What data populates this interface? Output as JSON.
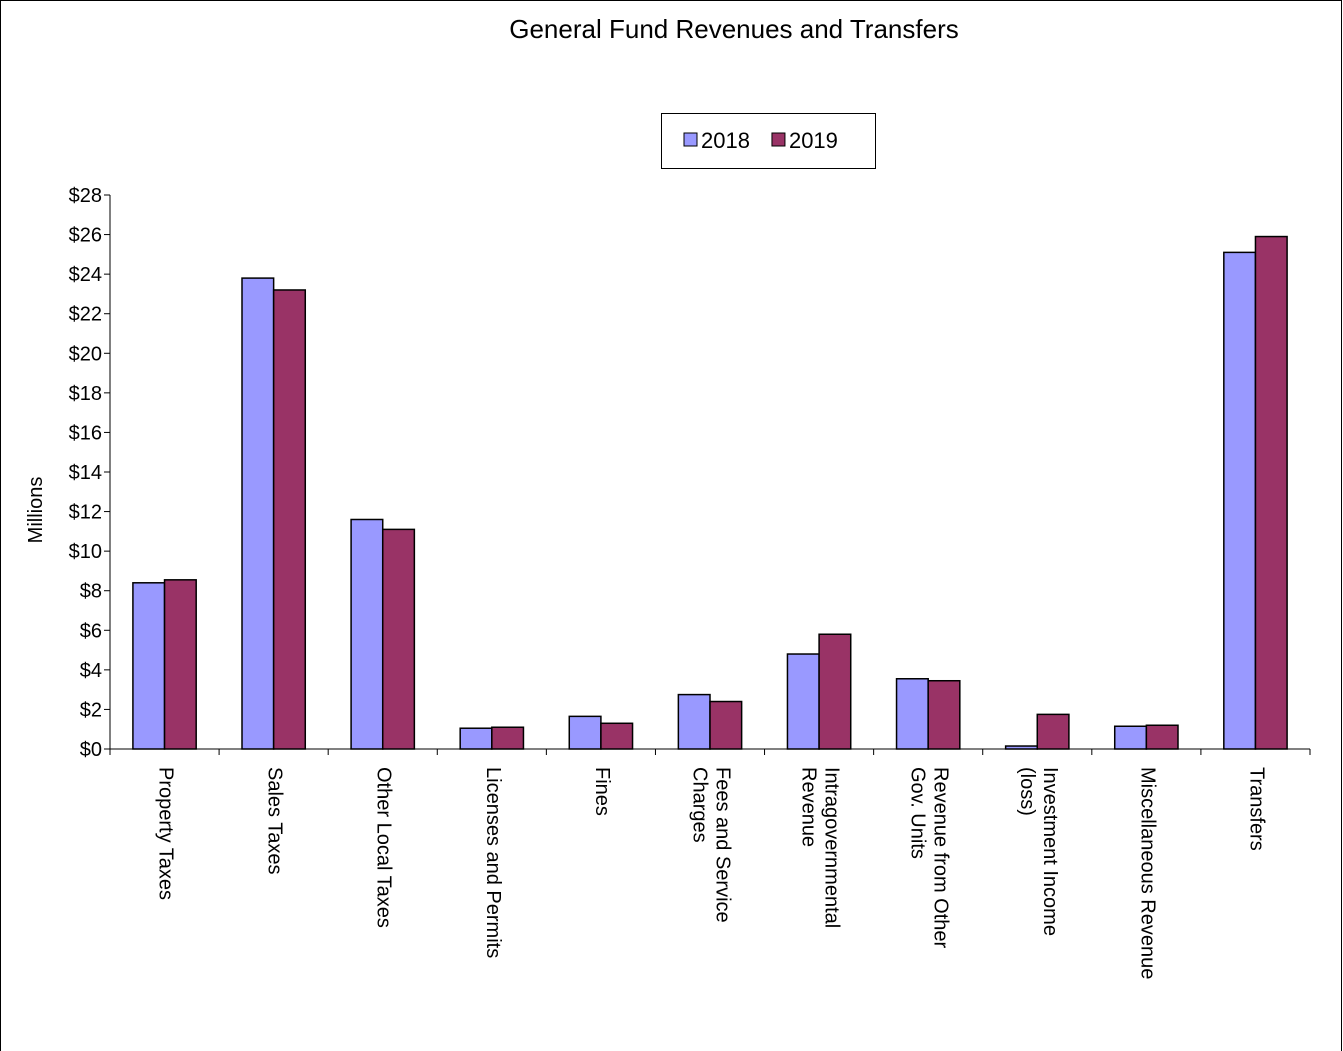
{
  "chart_data": {
    "type": "bar",
    "title": "General Fund Revenues and Transfers",
    "y_label": "Millions",
    "categories": [
      "Property Taxes",
      "Sales Taxes",
      "Other Local Taxes",
      "Licenses and Permits",
      "Fines",
      "Fees and Service Charges",
      "Intragovernmental Revenue",
      "Revenue from Other Gov. Units",
      "Investment Income (loss)",
      "Miscellaneous Revenue",
      "Transfers"
    ],
    "series": [
      {
        "name": "2018",
        "color": "#9999ff",
        "values": [
          8.4,
          23.8,
          11.6,
          1.05,
          1.65,
          2.75,
          4.8,
          3.55,
          0.15,
          1.15,
          25.1
        ]
      },
      {
        "name": "2019",
        "color": "#993366",
        "values": [
          8.55,
          23.2,
          11.1,
          1.1,
          1.3,
          2.4,
          5.8,
          3.45,
          1.75,
          1.2,
          25.9
        ]
      }
    ],
    "ylim": [
      0,
      28
    ],
    "yticks": [
      {
        "value": 0,
        "label": "$0"
      },
      {
        "value": 2,
        "label": "$2"
      },
      {
        "value": 4,
        "label": "$4"
      },
      {
        "value": 6,
        "label": "$6"
      },
      {
        "value": 8,
        "label": "$8"
      },
      {
        "value": 10,
        "label": "$10"
      },
      {
        "value": 12,
        "label": "$12"
      },
      {
        "value": 14,
        "label": "$14"
      },
      {
        "value": 16,
        "label": "$16"
      },
      {
        "value": 18,
        "label": "$18"
      },
      {
        "value": 20,
        "label": "$20"
      },
      {
        "value": 22,
        "label": "$22"
      },
      {
        "value": 24,
        "label": "$24"
      },
      {
        "value": 26,
        "label": "$26"
      },
      {
        "value": 28,
        "label": "$28"
      }
    ],
    "legend": "top",
    "grid": false
  }
}
